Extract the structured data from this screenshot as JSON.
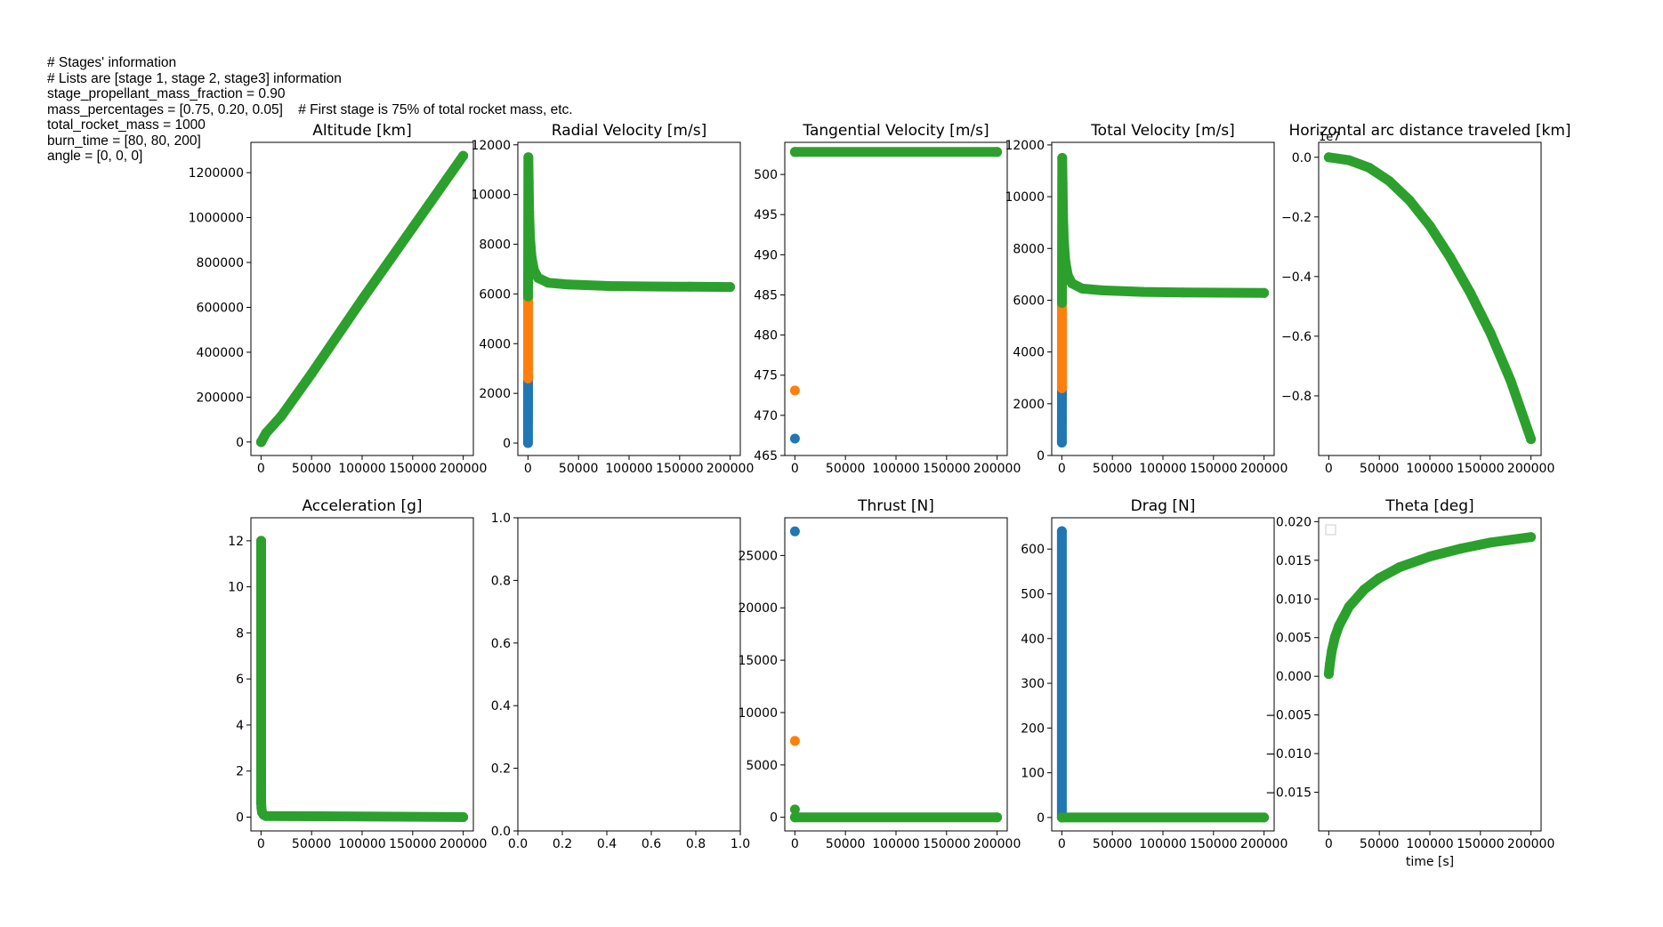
{
  "info_lines": [
    "# Stages' information",
    "# Lists are [stage 1, stage 2, stage3] information",
    "stage_propellant_mass_fraction = 0.90",
    "mass_percentages = [0.75, 0.20, 0.05]    # First stage is 75% of total rocket mass, etc.",
    "total_rocket_mass = 1000",
    "burn_time = [80, 80, 200]",
    "angle = [0, 0, 0]"
  ],
  "colors": {
    "stage1": "#1f77b4",
    "stage2": "#ff7f0e",
    "stage3": "#2ca02c"
  },
  "chart_data": [
    {
      "type": "scatter",
      "title": "Altitude [km]",
      "xlim": [
        -10000,
        210000
      ],
      "ylim": [
        -60000,
        1335000
      ],
      "xticks": [
        0,
        50000,
        100000,
        150000,
        200000
      ],
      "xticklabels": [
        "0",
        "50000",
        "100000",
        "150000",
        "200000"
      ],
      "yticks": [
        0,
        200000,
        400000,
        600000,
        800000,
        1000000,
        1200000
      ],
      "yticklabels": [
        "0",
        "200000",
        "400000",
        "600000",
        "800000",
        "1000000",
        "1200000"
      ],
      "series": [
        {
          "color": "#1f77b4",
          "x": [
            0,
            80
          ],
          "y": [
            0,
            30
          ]
        },
        {
          "color": "#ff7f0e",
          "x": [
            80,
            160
          ],
          "y": [
            30,
            120
          ]
        },
        {
          "color": "#2ca02c",
          "x": [
            160,
            5000,
            20000,
            50000,
            100000,
            150000,
            200000
          ],
          "y": [
            120,
            40000,
            115000,
            305000,
            635000,
            955000,
            1275000
          ]
        }
      ]
    },
    {
      "type": "scatter",
      "title": "Radial Velocity [m/s]",
      "xlim": [
        -10000,
        210000
      ],
      "ylim": [
        -500,
        12100
      ],
      "xticks": [
        0,
        50000,
        100000,
        150000,
        200000
      ],
      "xticklabels": [
        "0",
        "50000",
        "100000",
        "150000",
        "200000"
      ],
      "yticks": [
        0,
        2000,
        4000,
        6000,
        8000,
        10000,
        12000
      ],
      "yticklabels": [
        "0",
        "2000",
        "4000",
        "6000",
        "8000",
        "10000",
        "12000"
      ],
      "series": [
        {
          "color": "#1f77b4",
          "x": [
            0,
            80
          ],
          "y": [
            0,
            2600
          ]
        },
        {
          "color": "#ff7f0e",
          "x": [
            80,
            160
          ],
          "y": [
            2600,
            5900
          ]
        },
        {
          "color": "#2ca02c",
          "x": [
            160,
            380,
            700,
            1200,
            2000,
            3500,
            6000,
            10000,
            20000,
            40000,
            80000,
            120000,
            160000,
            200000
          ],
          "y": [
            5900,
            11500,
            10500,
            9300,
            8300,
            7500,
            6950,
            6650,
            6450,
            6380,
            6320,
            6300,
            6290,
            6280
          ]
        }
      ]
    },
    {
      "type": "scatter",
      "title": "Tangential Velocity [m/s]",
      "xlim": [
        -10000,
        210000
      ],
      "ylim": [
        465,
        504
      ],
      "xticks": [
        0,
        50000,
        100000,
        150000,
        200000
      ],
      "xticklabels": [
        "0",
        "50000",
        "100000",
        "150000",
        "200000"
      ],
      "yticks": [
        465,
        470,
        475,
        480,
        485,
        490,
        495,
        500
      ],
      "yticklabels": [
        "465",
        "470",
        "475",
        "480",
        "485",
        "490",
        "495",
        "500"
      ],
      "series": [
        {
          "color": "#1f77b4",
          "x": [
            0
          ],
          "y": [
            467.1
          ]
        },
        {
          "color": "#ff7f0e",
          "x": [
            0
          ],
          "y": [
            473.1
          ]
        },
        {
          "color": "#2ca02c",
          "x": [
            0,
            200000
          ],
          "y": [
            502.8,
            502.8
          ]
        }
      ]
    },
    {
      "type": "scatter",
      "title": "Total Velocity [m/s]",
      "xlim": [
        -10000,
        210000
      ],
      "ylim": [
        0,
        12100
      ],
      "xticks": [
        0,
        50000,
        100000,
        150000,
        200000
      ],
      "xticklabels": [
        "0",
        "50000",
        "100000",
        "150000",
        "200000"
      ],
      "yticks": [
        0,
        2000,
        4000,
        6000,
        8000,
        10000,
        12000
      ],
      "yticklabels": [
        "0",
        "2000",
        "4000",
        "6000",
        "8000",
        "10000",
        "12000"
      ],
      "series": [
        {
          "color": "#1f77b4",
          "x": [
            0,
            80
          ],
          "y": [
            500,
            2600
          ]
        },
        {
          "color": "#ff7f0e",
          "x": [
            80,
            160
          ],
          "y": [
            2600,
            5900
          ]
        },
        {
          "color": "#2ca02c",
          "x": [
            160,
            380,
            700,
            1200,
            2000,
            3500,
            6000,
            10000,
            20000,
            40000,
            80000,
            120000,
            160000,
            200000
          ],
          "y": [
            5900,
            11500,
            10500,
            9300,
            8300,
            7500,
            6950,
            6650,
            6450,
            6380,
            6320,
            6300,
            6290,
            6280
          ]
        }
      ]
    },
    {
      "type": "scatter",
      "title": "Horizontal arc distance traveled [km]",
      "offset_text": "1e7",
      "xlim": [
        -10000,
        210000
      ],
      "ylim": [
        -1.0,
        0.05
      ],
      "xticks": [
        0,
        50000,
        100000,
        150000,
        200000
      ],
      "xticklabels": [
        "0",
        "50000",
        "100000",
        "150000",
        "200000"
      ],
      "yticks": [
        0.0,
        -0.2,
        -0.4,
        -0.6,
        -0.8
      ],
      "yticklabels": [
        "0.0",
        "−0.2",
        "−0.4",
        "−0.6",
        "−0.8"
      ],
      "series": [
        {
          "color": "#2ca02c",
          "x": [
            0,
            20000,
            40000,
            60000,
            80000,
            100000,
            120000,
            140000,
            160000,
            180000,
            200000
          ],
          "y": [
            0,
            -0.01,
            -0.035,
            -0.08,
            -0.145,
            -0.23,
            -0.335,
            -0.455,
            -0.59,
            -0.75,
            -0.945
          ]
        }
      ]
    },
    {
      "type": "scatter",
      "title": "Acceleration [g]",
      "xlim": [
        -10000,
        210000
      ],
      "ylim": [
        -0.6,
        13.0
      ],
      "xticks": [
        0,
        50000,
        100000,
        150000,
        200000
      ],
      "xticklabels": [
        "0",
        "50000",
        "100000",
        "150000",
        "200000"
      ],
      "yticks": [
        0,
        2,
        4,
        6,
        8,
        10,
        12
      ],
      "yticklabels": [
        "0",
        "2",
        "4",
        "6",
        "8",
        "10",
        "12"
      ],
      "series": [
        {
          "color": "#1f77b4",
          "x": [
            0,
            80
          ],
          "y": [
            0.6,
            2.0
          ]
        },
        {
          "color": "#ff7f0e",
          "x": [
            80,
            160
          ],
          "y": [
            5.0,
            9.0
          ]
        },
        {
          "color": "#2ca02c",
          "x": [
            160,
            160,
            400,
            1000,
            2500,
            5000,
            200000
          ],
          "y": [
            12.0,
            0.8,
            0.4,
            0.2,
            0.1,
            0.05,
            0.0
          ]
        }
      ]
    },
    {
      "type": "scatter",
      "title": "",
      "xlim": [
        0,
        1
      ],
      "ylim": [
        0,
        1
      ],
      "xticks": [
        0,
        0.2,
        0.4,
        0.6,
        0.8,
        1.0
      ],
      "xticklabels": [
        "0.0",
        "0.2",
        "0.4",
        "0.6",
        "0.8",
        "1.0"
      ],
      "yticks": [
        0,
        0.2,
        0.4,
        0.6,
        0.8,
        1.0
      ],
      "yticklabels": [
        "0.0",
        "0.2",
        "0.4",
        "0.6",
        "0.8",
        "1.0"
      ],
      "series": []
    },
    {
      "type": "scatter",
      "title": "Thrust [N]",
      "xlim": [
        -10000,
        210000
      ],
      "ylim": [
        -1300,
        28600
      ],
      "xticks": [
        0,
        50000,
        100000,
        150000,
        200000
      ],
      "xticklabels": [
        "0",
        "50000",
        "100000",
        "150000",
        "200000"
      ],
      "yticks": [
        0,
        5000,
        10000,
        15000,
        20000,
        25000
      ],
      "yticklabels": [
        "0",
        "5000",
        "10000",
        "15000",
        "20000",
        "25000"
      ],
      "series": [
        {
          "color": "#1f77b4",
          "x": [
            0
          ],
          "y": [
            27300
          ]
        },
        {
          "color": "#ff7f0e",
          "x": [
            0
          ],
          "y": [
            7300
          ]
        },
        {
          "color": "#2ca02c",
          "x": [
            0
          ],
          "y": [
            750
          ]
        },
        {
          "color": "#2ca02c",
          "x": [
            0,
            200000
          ],
          "y": [
            0,
            0
          ]
        }
      ]
    },
    {
      "type": "scatter",
      "title": "Drag [N]",
      "xlim": [
        -10000,
        210000
      ],
      "ylim": [
        -30,
        670
      ],
      "xticks": [
        0,
        50000,
        100000,
        150000,
        200000
      ],
      "xticklabels": [
        "0",
        "50000",
        "100000",
        "150000",
        "200000"
      ],
      "yticks": [
        0,
        100,
        200,
        300,
        400,
        500,
        600
      ],
      "yticklabels": [
        "0",
        "100",
        "200",
        "300",
        "400",
        "500",
        "600"
      ],
      "series": [
        {
          "color": "#1f77b4",
          "x": [
            0,
            0
          ],
          "y": [
            0,
            640
          ]
        },
        {
          "color": "#2ca02c",
          "x": [
            0,
            200000
          ],
          "y": [
            0,
            0
          ]
        }
      ]
    },
    {
      "type": "scatter",
      "title": "Theta [deg]",
      "xlabel": "time [s]",
      "legend": "top-left (empty)",
      "xlim": [
        -10000,
        210000
      ],
      "ylim": [
        -0.02,
        0.0205
      ],
      "xticks": [
        0,
        50000,
        100000,
        150000,
        200000
      ],
      "xticklabels": [
        "0",
        "50000",
        "100000",
        "150000",
        "200000"
      ],
      "yticks": [
        -0.015,
        -0.01,
        -0.005,
        0.0,
        0.005,
        0.01,
        0.015,
        0.02
      ],
      "yticklabels": [
        "−0.015",
        "−0.010",
        "−0.005",
        "0.000",
        "0.005",
        "0.010",
        "0.015",
        "0.020"
      ],
      "series": [
        {
          "color": "#2ca02c",
          "x": [
            0,
            1000,
            3000,
            6000,
            10000,
            20000,
            35000,
            50000,
            70000,
            100000,
            130000,
            160000,
            200000
          ],
          "y": [
            0.0003,
            0.0015,
            0.0033,
            0.005,
            0.0065,
            0.009,
            0.0112,
            0.0127,
            0.0141,
            0.0155,
            0.0165,
            0.0173,
            0.018
          ]
        }
      ]
    }
  ]
}
